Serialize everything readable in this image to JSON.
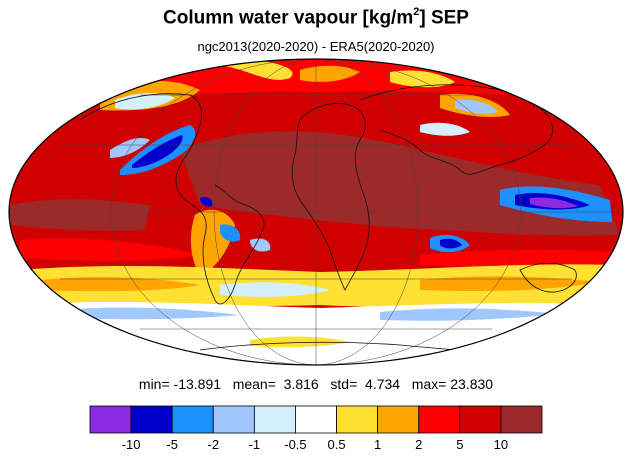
{
  "title": {
    "main": "Column water vapour [kg/m",
    "sup": "2",
    "suffix": "] SEP"
  },
  "subtitle": "ngc2013(2020-2020) - ERA5(2020-2020)",
  "stats": {
    "min_label": "min=",
    "min": "-13.891",
    "mean_label": "mean=",
    "mean": "3.816",
    "std_label": "std=",
    "std": "4.734",
    "max_label": "max=",
    "max": "23.830"
  },
  "colorbar": {
    "colors": [
      "#8a2be2",
      "#0000cd",
      "#1e90ff",
      "#a0c8ff",
      "#d4f0ff",
      "#ffffff",
      "#ffe033",
      "#ffa500",
      "#ff0000",
      "#d00000",
      "#9c2a2a"
    ],
    "labels": [
      "-10",
      "-5",
      "-2",
      "-1",
      "-0.5",
      "0.5",
      "1",
      "2",
      "5",
      "10"
    ]
  },
  "map": {
    "projection": "mollweide",
    "background_color": "#d00000"
  }
}
